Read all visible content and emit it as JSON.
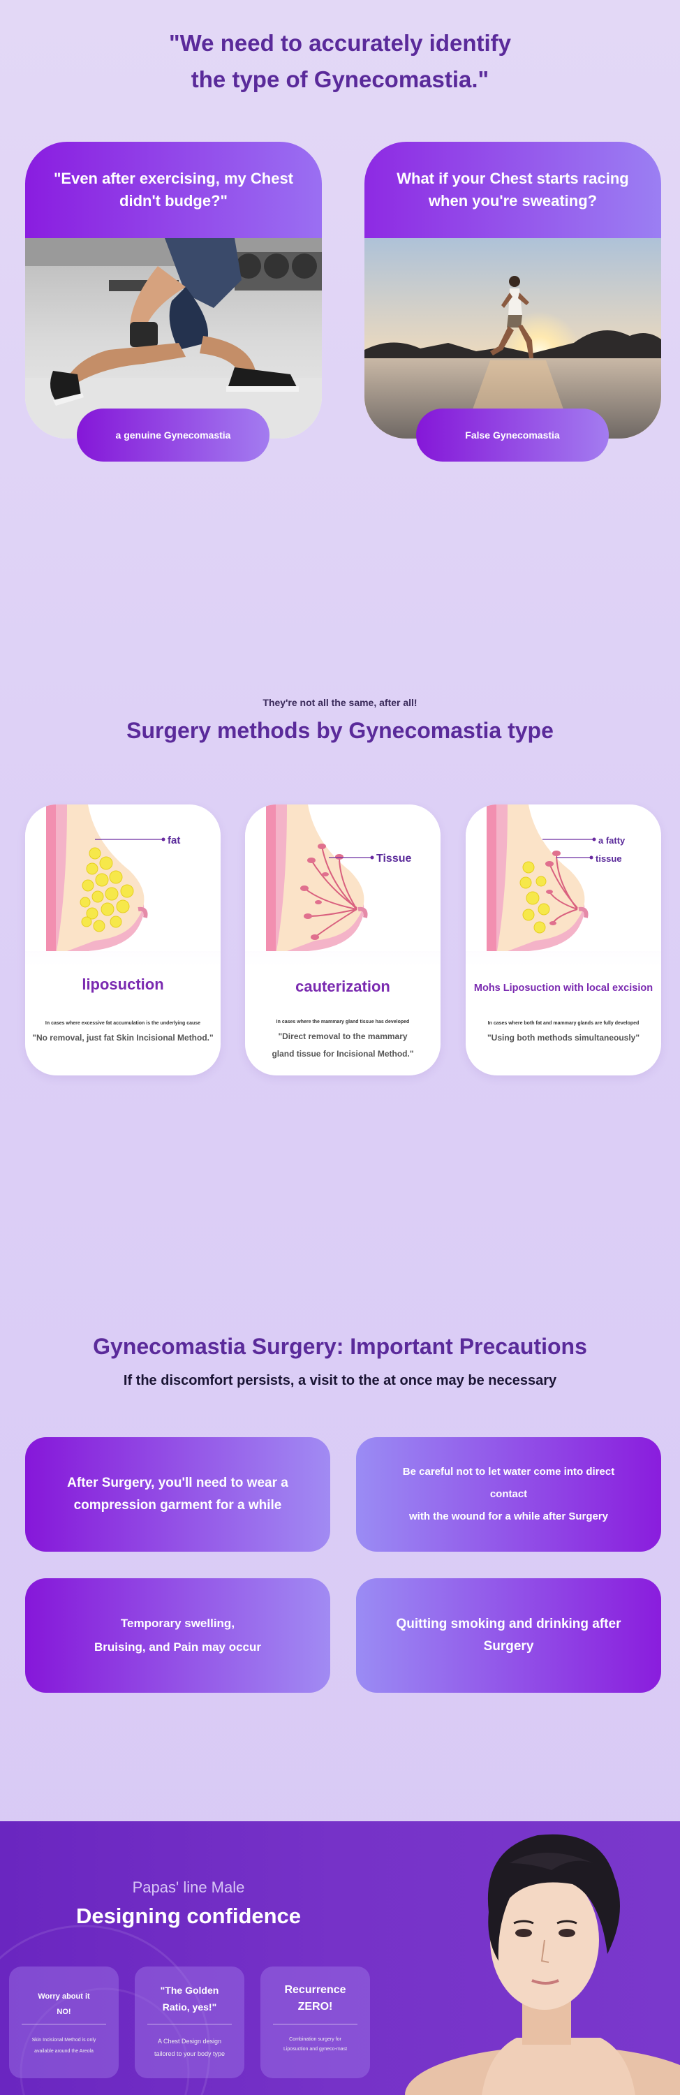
{
  "identify": {
    "title_line1": "\"We need to accurately identify",
    "title_line2": "the type of Gynecomastia.\"",
    "cards": [
      {
        "question": "\"Even after exercising, my Chest didn't budge?\"",
        "pill": "a genuine Gynecomastia"
      },
      {
        "question": "What if your Chest starts racing when you're sweating?",
        "pill": "False Gynecomastia"
      }
    ]
  },
  "methods": {
    "subtitle": "They're not all the same, after all!",
    "title": "Surgery methods by Gynecomastia type",
    "cards": [
      {
        "labels": [
          "fat"
        ],
        "title": "liposuction",
        "note": "In cases where excessive fat accumulation is the underlying cause",
        "quote_lines": [
          "\"No removal, just fat Skin Incisional Method.\""
        ]
      },
      {
        "labels": [
          "Tissue"
        ],
        "title": "cauterization",
        "note": "In cases where the mammary gland tissue has developed",
        "quote_lines": [
          "\"Direct removal to the mammary",
          "gland tissue for Incisional Method.\""
        ]
      },
      {
        "labels": [
          "a fatty",
          "tissue"
        ],
        "title": "Mohs Liposuction with local excision",
        "note": "In cases where both fat and mammary glands are fully developed",
        "quote_lines": [
          "\"Using both methods simultaneously\""
        ]
      }
    ]
  },
  "precautions": {
    "title": "Gynecomastia Surgery: Important Precautions",
    "subtitle": "If the discomfort persists, a visit to the at once may be necessary",
    "items": [
      {
        "line1": "After Surgery, you'll need to wear a",
        "line2": "compression garment for a while"
      },
      {
        "line1": "Be careful not to let water come into direct contact",
        "line2": "with the wound for a while after Surgery"
      },
      {
        "line1": "Temporary swelling,",
        "line2": "Bruising, and Pain may occur"
      },
      {
        "line1": "Quitting smoking and drinking after",
        "line2": "Surgery"
      }
    ]
  },
  "banner": {
    "subtitle": "Papas' line Male",
    "title": "Designing confidence",
    "cards": [
      {
        "t1": "Worry about it",
        "t2": "NO!",
        "d1": "Skin Incisional Method is only",
        "d2": "available around the Areola"
      },
      {
        "t1": "\"The Golden",
        "t2": "Ratio, yes!\"",
        "d1": "A Chest Design design",
        "d2": "tailored to your body type"
      },
      {
        "t1": "Recurrence",
        "t2": "ZERO!",
        "d1": "Combination surgery for",
        "d2": "Liposuction and gyneco-mast"
      }
    ]
  },
  "colors": {
    "accent": "#8a1de0",
    "title": "#5a2a9a",
    "pink": "#f28fb0",
    "yellow": "#f6e84a"
  }
}
